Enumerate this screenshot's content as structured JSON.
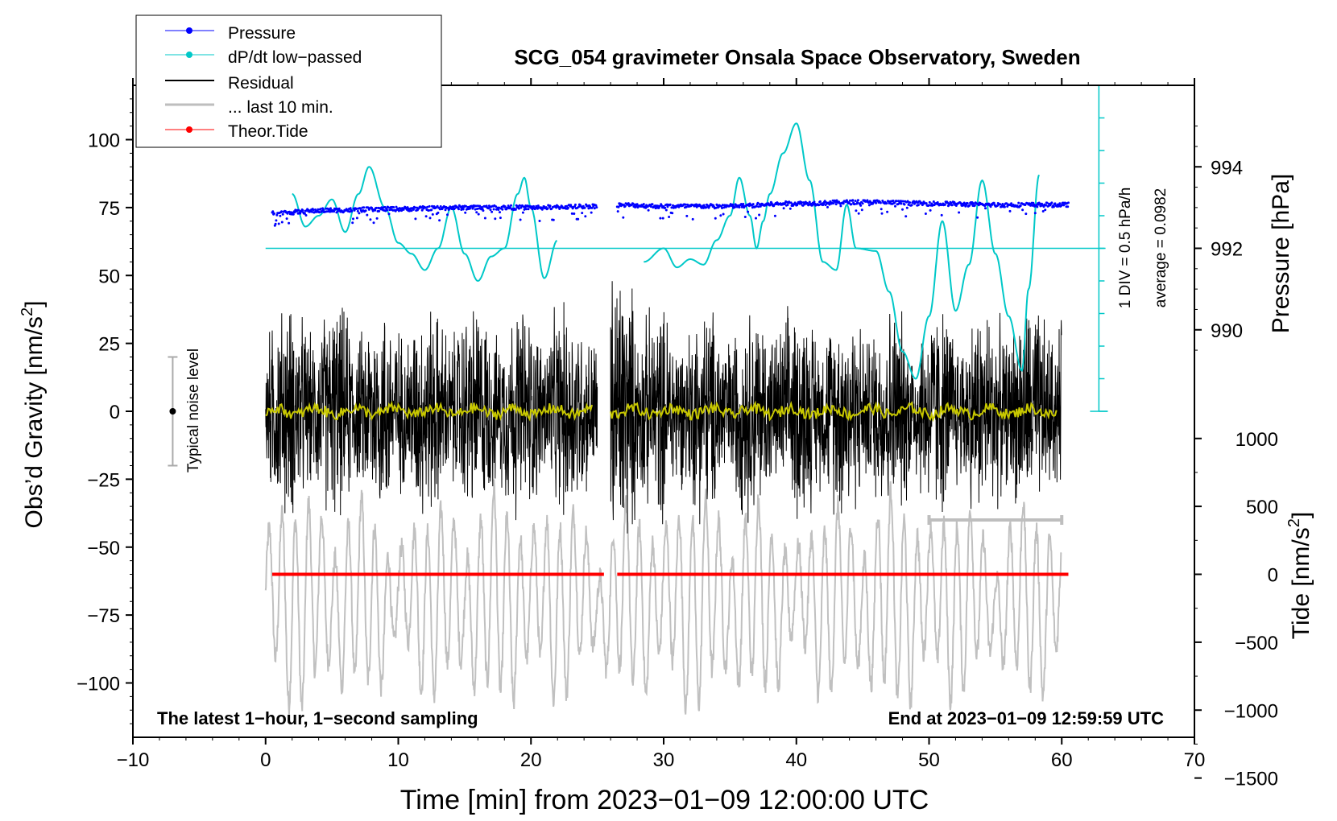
{
  "chart_data": {
    "type": "line",
    "title": "SCG_054 gravimeter Onsala Space Observatory, Sweden",
    "xlabel": "Time [min] from 2023−01−09 12:00:00 UTC",
    "ylabel_left": "Obs’d Gravity [nm/s",
    "ylabel_left_sup": "2",
    "ylabel_left_tail": "]",
    "ylabel_right_pressure": "Pressure [hPa]",
    "ylabel_right_tide": "Tide [nm/s",
    "ylabel_right_tide_sup": "2",
    "ylabel_right_tide_tail": "]",
    "xlim": [
      -10,
      70
    ],
    "ylim": [
      -120,
      120
    ],
    "x_ticks": [
      -10,
      0,
      10,
      20,
      30,
      40,
      50,
      60,
      70
    ],
    "x_tick_labels": [
      "−10",
      "0",
      "10",
      "20",
      "30",
      "40",
      "50",
      "60",
      "70"
    ],
    "y_ticks": [
      -100,
      -75,
      -50,
      -25,
      0,
      25,
      50,
      75,
      100
    ],
    "y_tick_labels": [
      "−100",
      "−75",
      "−50",
      "−25",
      "0",
      "25",
      "50",
      "75",
      "100"
    ],
    "pressure_axis": {
      "ticks": [
        990,
        992,
        994
      ],
      "tick_labels": [
        "990",
        "992",
        "994"
      ],
      "gravity_at_990": 30,
      "gravity_per_hpa": 15
    },
    "tide_axis": {
      "ticks": [
        1000,
        500,
        0,
        -500,
        -1000,
        -1500
      ],
      "tick_labels": [
        "1000",
        "500",
        "0",
        "−500",
        "−1000",
        "−1500"
      ],
      "gravity_at_0": -60,
      "gravity_per_nm": 0.05
    },
    "legend": {
      "position": "top-left",
      "items": [
        {
          "label": "Pressure",
          "color": "#0000ff",
          "style": "line-dot"
        },
        {
          "label": "dP/dt low−passed",
          "color": "#00c8c8",
          "style": "line-dot"
        },
        {
          "label": "Residual",
          "color": "#000000",
          "style": "line"
        },
        {
          "label": "... last 10 min.",
          "color": "#bebebe",
          "style": "thick-line"
        },
        {
          "label": "Theor.Tide",
          "color": "#ff0000",
          "style": "line-dot"
        }
      ]
    },
    "annotations": {
      "sampling": "The latest 1−hour, 1−second sampling",
      "end_time": "End at 2023−01−09 12:59:59 UTC",
      "noise_label": "Typical noise level",
      "div_label": "1 DIV = 0.5 hPa/h",
      "average_label": "average = 0.0982"
    },
    "noise_bar": {
      "x": -7,
      "center": 0,
      "half_range": 20
    },
    "last10_range": [
      50,
      60
    ],
    "last10_level": -40,
    "dpdt_zero_level": 60,
    "dpdt_scale_top": 120,
    "dpdt_scale_bottom": 0,
    "colors": {
      "pressure": "#0000ff",
      "dpdt": "#00c8c8",
      "residual": "#000000",
      "running_mean": "#c8c800",
      "tide": "#ff0000",
      "last10": "#bebebe",
      "tilt": "#c0c0c0"
    },
    "series": [
      {
        "name": "Pressure",
        "segments": [
          {
            "x": [
              0.5,
              5,
              10,
              15,
              20,
              25
            ],
            "y": [
              73,
              74,
              74.5,
              75,
              75,
              75.5
            ]
          },
          {
            "x": [
              26.5,
              30,
              35,
              40,
              45,
              50,
              55,
              60.5
            ],
            "y": [
              76,
              75.5,
              75.5,
              76.5,
              77,
              76.5,
              76,
              76
            ]
          }
        ]
      },
      {
        "name": "dP/dt low−passed",
        "segments": [
          {
            "x": [
              2,
              3,
              4,
              5,
              6,
              7,
              7.8,
              9,
              10,
              11,
              12,
              13,
              14,
              15,
              16,
              17,
              18,
              19,
              19.5,
              20,
              21,
              22
            ],
            "y": [
              80,
              68,
              72,
              78,
              66,
              80,
              90,
              75,
              62,
              58,
              52,
              60,
              75,
              58,
              48,
              57,
              60,
              80,
              86,
              75,
              49,
              63
            ]
          },
          {
            "x": [
              28.5,
              30,
              31,
              32,
              33,
              34,
              35,
              35.7,
              36.5,
              37,
              37.5,
              38,
              39,
              40,
              41,
              42,
              43,
              43.8,
              44.5,
              46,
              47,
              48,
              49,
              50,
              51,
              52,
              53,
              54,
              55,
              56,
              57,
              57.5,
              58.3
            ],
            "y": [
              55,
              60,
              53,
              56,
              54,
              63,
              72,
              86,
              72,
              60,
              70,
              80,
              95,
              106,
              85,
              55,
              52,
              76,
              60,
              59,
              44,
              22,
              12,
              35,
              70,
              37,
              54,
              85,
              58,
              35,
              15,
              45,
              87
            ]
          }
        ]
      },
      {
        "name": "Residual",
        "segments": [
          {
            "x": [
              0,
              25
            ],
            "y": [
              0,
              0
            ]
          },
          {
            "x": [
              26,
              60
            ],
            "y": [
              0,
              0
            ]
          }
        ],
        "amplitude_approx": 30
      },
      {
        "name": "Theor.Tide",
        "segments": [
          {
            "x": [
              0.5,
              25.5
            ],
            "y": [
              -60,
              -60
            ]
          },
          {
            "x": [
              26.5,
              60.5
            ],
            "y": [
              -60,
              -60
            ]
          }
        ]
      }
    ]
  }
}
